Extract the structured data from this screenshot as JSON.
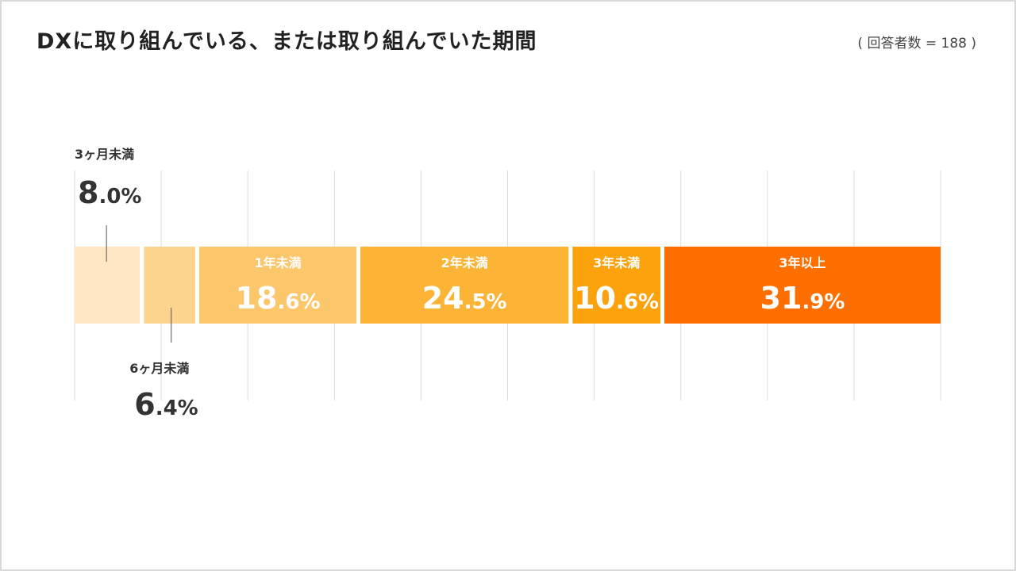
{
  "page": {
    "title": "DXに取り組んでいる、または取り組んでいた期間",
    "sample_note": "( 回答者数 = 188 )"
  },
  "chart_data": {
    "type": "bar",
    "orientation": "horizontal-stacked-100",
    "title": "DXに取り組んでいる、または取り組んでいた期間",
    "categories": [
      "3ヶ月未満",
      "6ヶ月未満",
      "1年未満",
      "2年未満",
      "3年未満",
      "3年以上"
    ],
    "values": [
      8.0,
      6.4,
      18.6,
      24.5,
      10.6,
      31.9
    ],
    "value_labels": [
      "8.0%",
      "6.4%",
      "18.6%",
      "24.5%",
      "10.6%",
      "31.9%"
    ],
    "colors": [
      "#ffe6c4",
      "#fdd48e",
      "#fcc66a",
      "#fbb435",
      "#fba20d",
      "#fe6f00"
    ],
    "label_position": [
      "outside-top",
      "outside-bottom",
      "inside",
      "inside",
      "inside",
      "inside"
    ],
    "xlim": [
      0,
      100
    ],
    "grid": true,
    "grid_lines": 11,
    "gridline_color": "#dddddd",
    "label_text_color": "#333333",
    "legend": "none"
  }
}
